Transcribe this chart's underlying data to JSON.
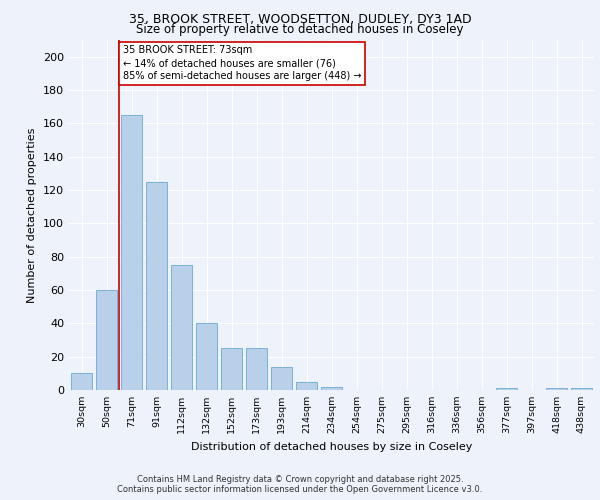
{
  "title_line1": "35, BROOK STREET, WOODSETTON, DUDLEY, DY3 1AD",
  "title_line2": "Size of property relative to detached houses in Coseley",
  "xlabel": "Distribution of detached houses by size in Coseley",
  "ylabel": "Number of detached properties",
  "bar_values": [
    10,
    60,
    165,
    125,
    75,
    40,
    25,
    25,
    14,
    5,
    2,
    0,
    0,
    0,
    0,
    0,
    0,
    1,
    0,
    1,
    1
  ],
  "categories": [
    "30sqm",
    "50sqm",
    "71sqm",
    "91sqm",
    "112sqm",
    "132sqm",
    "152sqm",
    "173sqm",
    "193sqm",
    "214sqm",
    "234sqm",
    "254sqm",
    "275sqm",
    "295sqm",
    "316sqm",
    "336sqm",
    "356sqm",
    "377sqm",
    "397sqm",
    "418sqm",
    "438sqm"
  ],
  "bar_color": "#b8d0ea",
  "bar_edge_color": "#6aaad4",
  "annotation_line1": "35 BROOK STREET: 73sqm",
  "annotation_line2": "← 14% of detached houses are smaller (76)",
  "annotation_line3": "85% of semi-detached houses are larger (448) →",
  "annotation_box_color": "#ffffff",
  "annotation_box_edge_color": "#cc0000",
  "vline_color": "#cc0000",
  "vline_x_index": 2,
  "ylim": [
    0,
    210
  ],
  "yticks": [
    0,
    20,
    40,
    60,
    80,
    100,
    120,
    140,
    160,
    180,
    200
  ],
  "bg_color": "#eef2fa",
  "grid_color": "#ffffff",
  "title_fontsize": 9,
  "title2_fontsize": 8.5,
  "footer_line1": "Contains HM Land Registry data © Crown copyright and database right 2025.",
  "footer_line2": "Contains public sector information licensed under the Open Government Licence v3.0."
}
